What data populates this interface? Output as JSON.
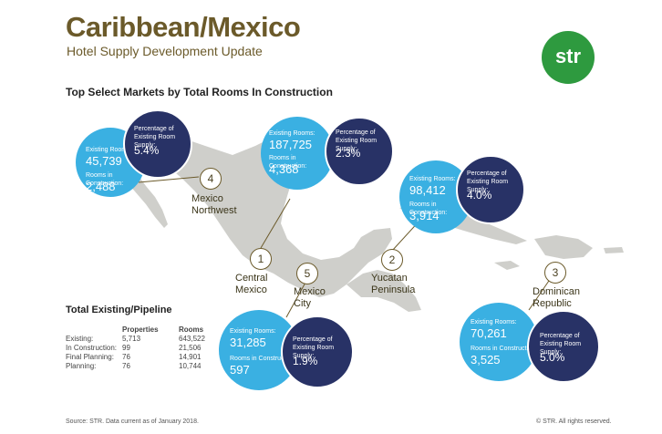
{
  "header": {
    "title": "Caribbean/Mexico",
    "subtitle": "Hotel Supply Development Update",
    "logo": "str"
  },
  "section_title": "Top Select Markets by Total Rooms In Construction",
  "labels": {
    "existing": "Existing Rooms:",
    "construction": "Rooms in Construction:",
    "percentage": "Percentage of Existing Room Supply:"
  },
  "markets": [
    {
      "rank": "1",
      "name_line1": "Central",
      "name_line2": "Mexico",
      "existing": "187,725",
      "construction": "4,368",
      "percentage": "2.3%"
    },
    {
      "rank": "2",
      "name_line1": "Yucatan",
      "name_line2": "Peninsula",
      "existing": "98,412",
      "construction": "3,914",
      "percentage": "4.0%"
    },
    {
      "rank": "3",
      "name_line1": "Dominican",
      "name_line2": "Republic",
      "existing": "70,261",
      "construction": "3,525",
      "percentage": "5.0%"
    },
    {
      "rank": "4",
      "name_line1": "Mexico",
      "name_line2": "Northwest",
      "existing": "45,739",
      "construction": "2,488",
      "percentage": "5.4%"
    },
    {
      "rank": "5",
      "name_line1": "Mexico",
      "name_line2": "City",
      "existing": "31,285",
      "construction": "597",
      "percentage": "1.9%"
    }
  ],
  "pipeline": {
    "title": "Total Existing/Pipeline",
    "headers": [
      "",
      "Properties",
      "Rooms"
    ],
    "rows": [
      [
        "Existing:",
        "5,713",
        "643,522"
      ],
      [
        "In Construction:",
        "99",
        "21,506"
      ],
      [
        "Final Planning:",
        "76",
        "14,901"
      ],
      [
        "Planning:",
        "76",
        "10,744"
      ]
    ]
  },
  "footer": {
    "source": "Source: STR. Data current as of January 2018.",
    "copyright": "© STR. All rights reserved."
  },
  "colors": {
    "title": "#6b5a2a",
    "light_circle": "#3ab0e2",
    "dark_circle": "#283266",
    "logo": "#2e9a3f",
    "map": "#cfcfcb"
  }
}
